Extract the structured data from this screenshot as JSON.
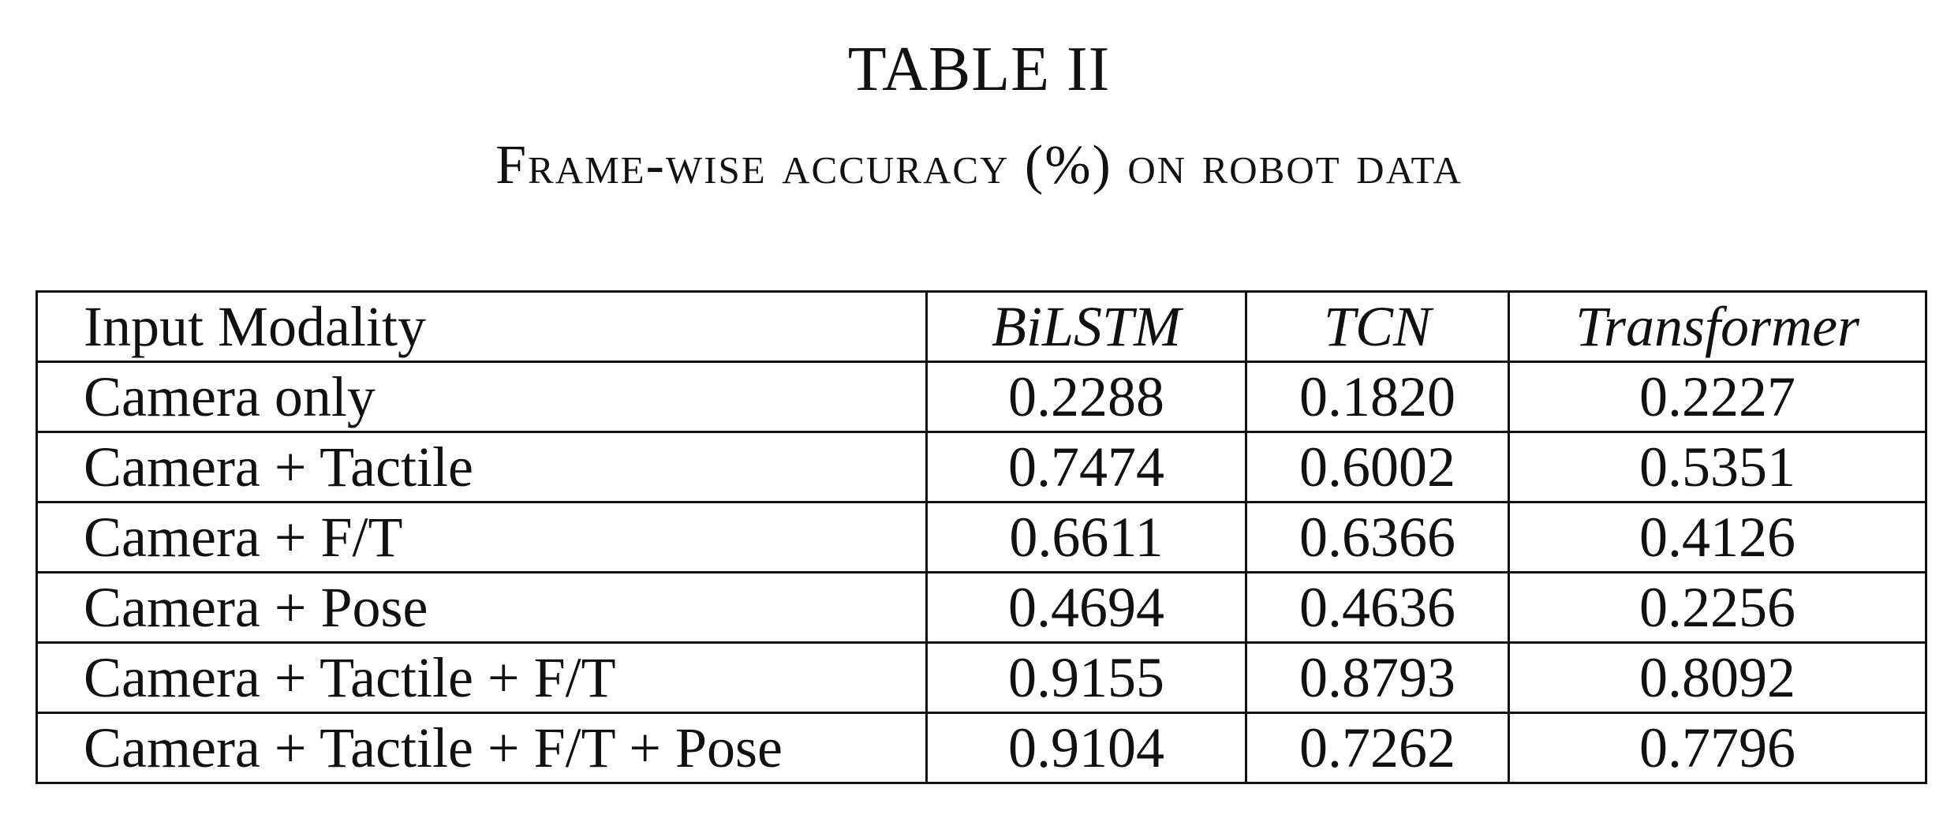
{
  "table": {
    "label": "TABLE II",
    "caption": "Frame-wise accuracy (%) on robot data",
    "columns": [
      "Input Modality",
      "BiLSTM",
      "TCN",
      "Transformer"
    ],
    "rows": [
      {
        "modality": "Camera only",
        "bilstm": "0.2288",
        "tcn": "0.1820",
        "transformer": "0.2227"
      },
      {
        "modality": "Camera + Tactile",
        "bilstm": "0.7474",
        "tcn": "0.6002",
        "transformer": "0.5351"
      },
      {
        "modality": "Camera + F/T",
        "bilstm": "0.6611",
        "tcn": "0.6366",
        "transformer": "0.4126"
      },
      {
        "modality": "Camera + Pose",
        "bilstm": "0.4694",
        "tcn": "0.4636",
        "transformer": "0.2256"
      },
      {
        "modality": "Camera + Tactile + F/T",
        "bilstm": "0.9155",
        "tcn": "0.8793",
        "transformer": "0.8092"
      },
      {
        "modality": "Camera + Tactile + F/T + Pose",
        "bilstm": "0.9104",
        "tcn": "0.7262",
        "transformer": "0.7796"
      }
    ],
    "bold_cell": {
      "row": 5,
      "column": "bilstm"
    }
  }
}
